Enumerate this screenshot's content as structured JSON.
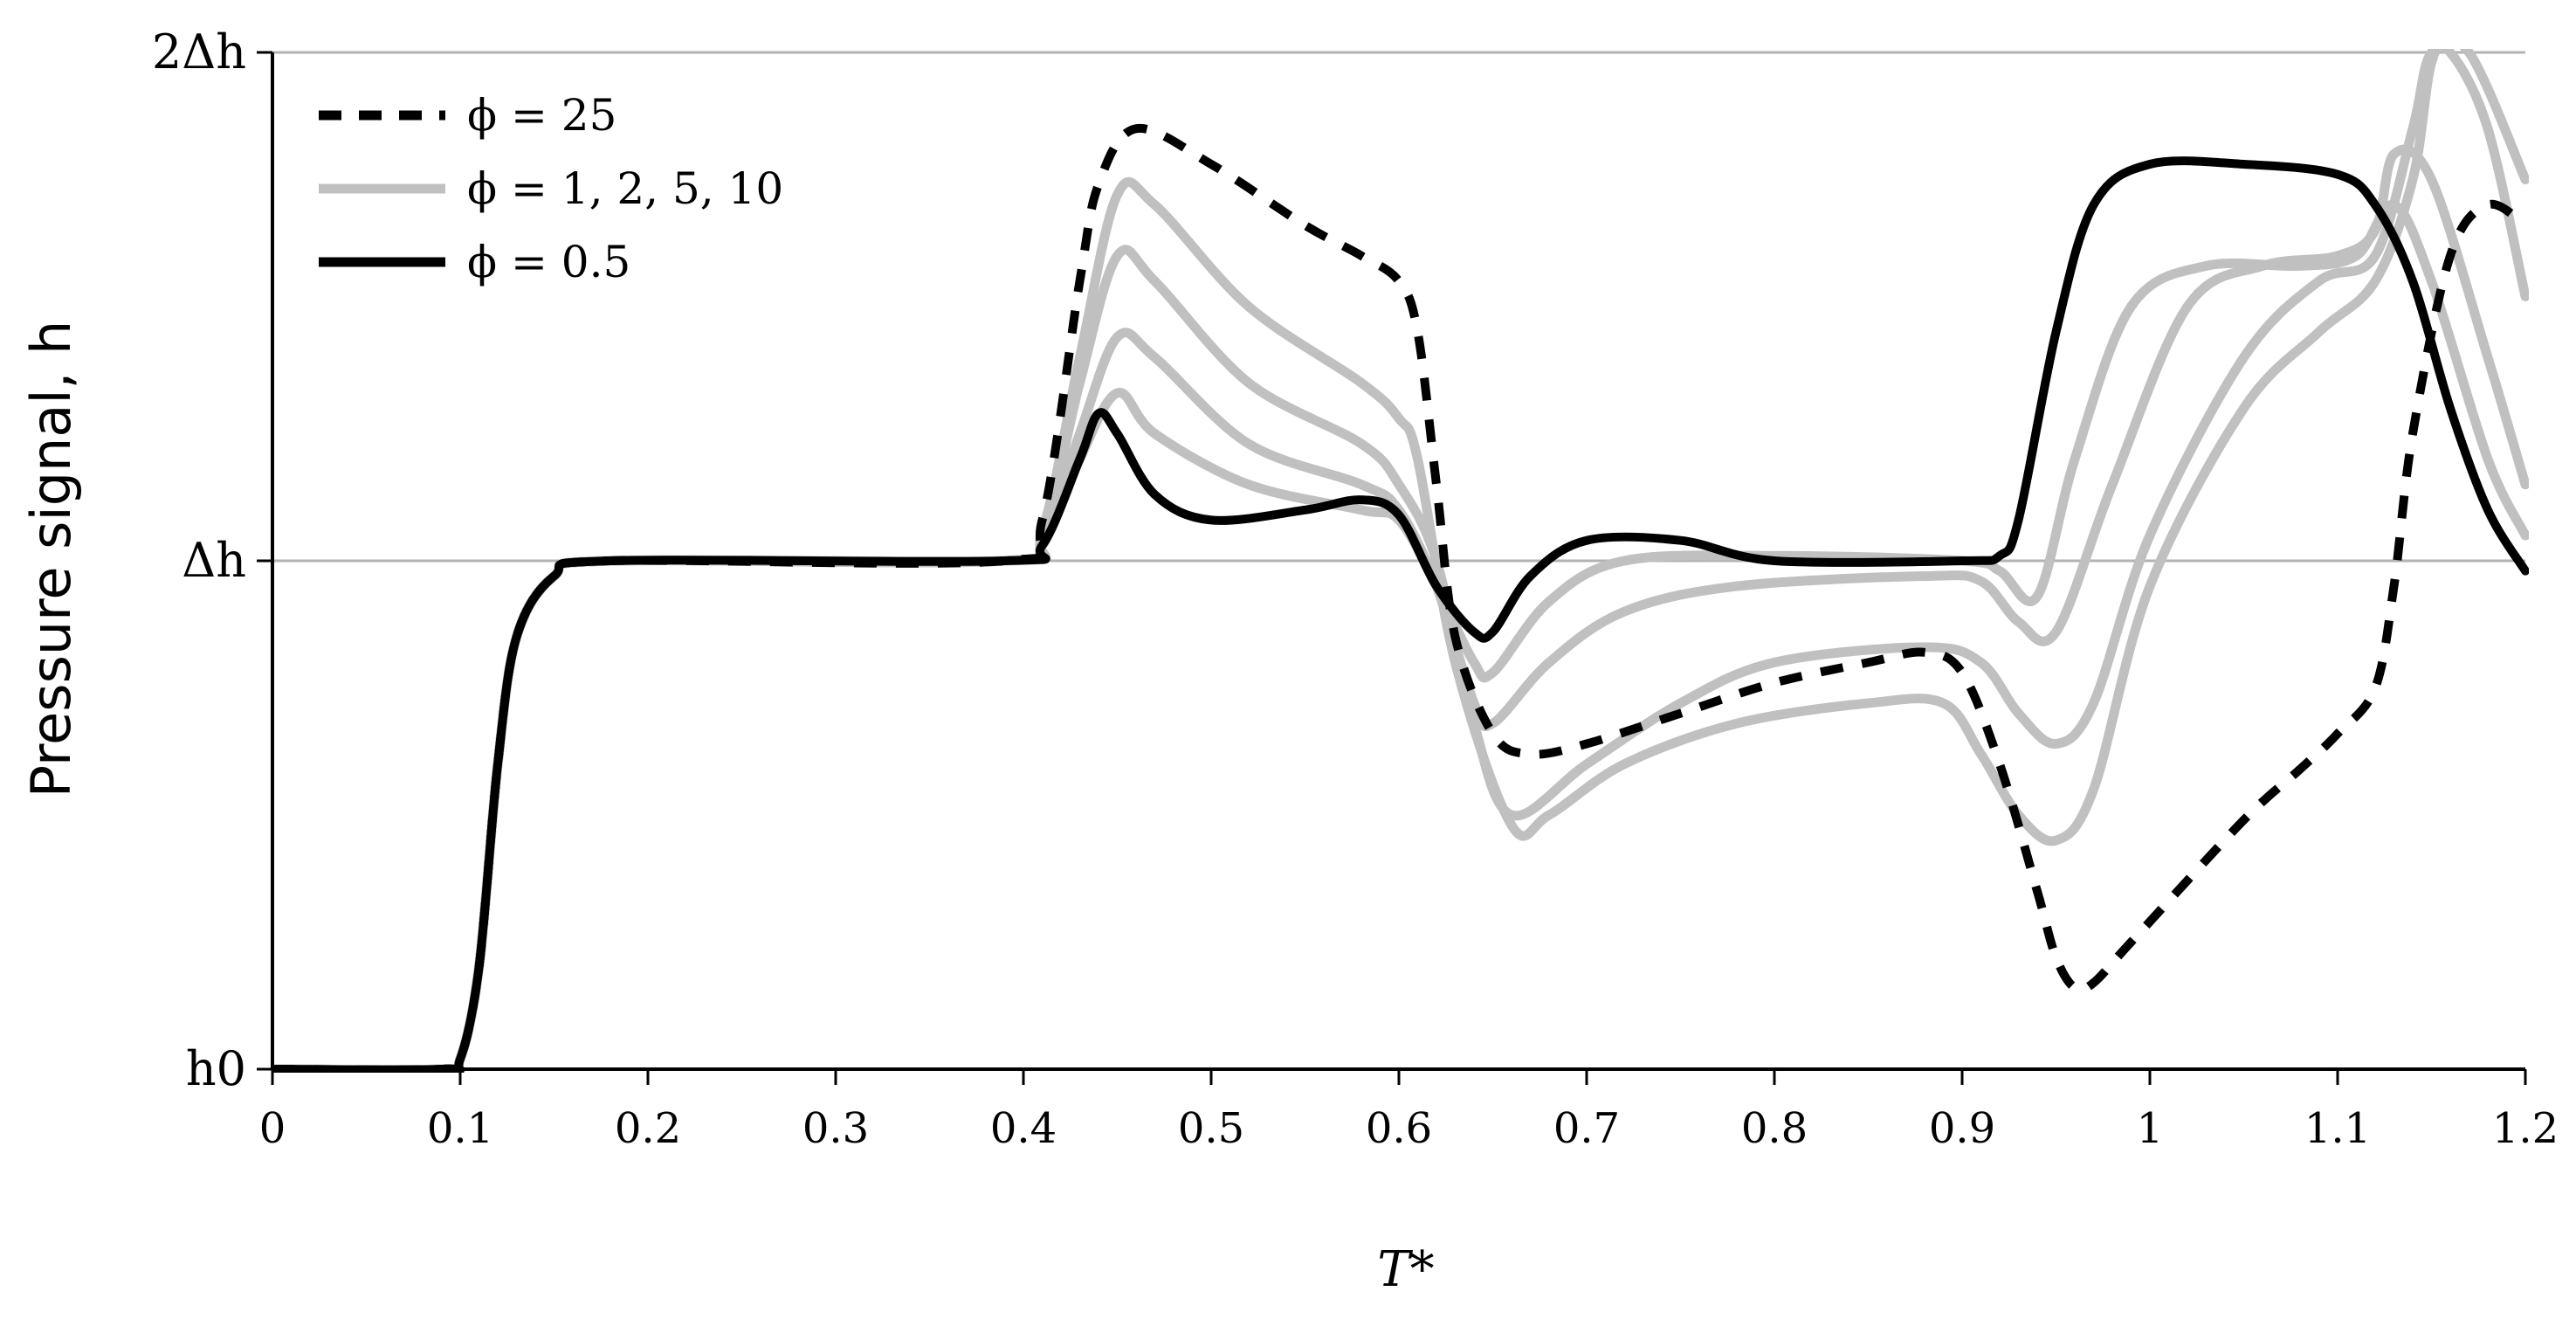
{
  "chart_data": {
    "type": "line",
    "xlabel": "T*",
    "ylabel": "Pressure signal, h",
    "xlim": [
      0,
      1.2
    ],
    "ylim": [
      0,
      2
    ],
    "x_ticks": [
      0,
      0.1,
      0.2,
      0.3,
      0.4,
      0.5,
      0.6,
      0.7,
      0.8,
      0.9,
      1,
      1.1,
      1.2
    ],
    "x_tick_labels": [
      "0",
      "0.1",
      "0.2",
      "0.3",
      "0.4",
      "0.5",
      "0.6",
      "0.7",
      "0.8",
      "0.9",
      "1",
      "1.1",
      "1.2"
    ],
    "y_ticks": [
      0,
      1,
      2
    ],
    "y_tick_labels": [
      "h0",
      "Δh",
      "2Δh"
    ],
    "grid": "horizontal",
    "legend_position": "top-left",
    "legend": [
      {
        "label": "ϕ = 25",
        "style": "dashed",
        "color": "#000000"
      },
      {
        "label": "ϕ = 1, 2, 5, 10",
        "style": "solid",
        "color": "#c0c0c0"
      },
      {
        "label": "ϕ = 0.5",
        "style": "solid",
        "color": "#000000"
      }
    ],
    "series": [
      {
        "name": "ϕ = 25",
        "color": "#000000",
        "style": "dashed",
        "points": [
          [
            0,
            0
          ],
          [
            0.09,
            0
          ],
          [
            0.1,
            0.02
          ],
          [
            0.11,
            0.2
          ],
          [
            0.12,
            0.6
          ],
          [
            0.13,
            0.85
          ],
          [
            0.15,
            0.97
          ],
          [
            0.18,
            1
          ],
          [
            0.39,
            1
          ],
          [
            0.41,
            1.08
          ],
          [
            0.43,
            1.55
          ],
          [
            0.44,
            1.74
          ],
          [
            0.46,
            1.85
          ],
          [
            0.5,
            1.78
          ],
          [
            0.55,
            1.66
          ],
          [
            0.58,
            1.6
          ],
          [
            0.6,
            1.55
          ],
          [
            0.61,
            1.45
          ],
          [
            0.62,
            1.15
          ],
          [
            0.63,
            0.85
          ],
          [
            0.65,
            0.66
          ],
          [
            0.67,
            0.62
          ],
          [
            0.7,
            0.64
          ],
          [
            0.75,
            0.7
          ],
          [
            0.8,
            0.76
          ],
          [
            0.85,
            0.8
          ],
          [
            0.88,
            0.82
          ],
          [
            0.9,
            0.78
          ],
          [
            0.92,
            0.6
          ],
          [
            0.94,
            0.35
          ],
          [
            0.95,
            0.22
          ],
          [
            0.96,
            0.16
          ],
          [
            0.97,
            0.17
          ],
          [
            0.99,
            0.25
          ],
          [
            1.05,
            0.49
          ],
          [
            1.08,
            0.59
          ],
          [
            1.1,
            0.66
          ],
          [
            1.12,
            0.75
          ],
          [
            1.13,
            0.95
          ],
          [
            1.14,
            1.25
          ],
          [
            1.16,
            1.6
          ],
          [
            1.18,
            1.7
          ],
          [
            1.2,
            1.66
          ]
        ]
      },
      {
        "name": "ϕ = 10",
        "color": "#c0c0c0",
        "style": "solid",
        "points": [
          [
            0,
            0
          ],
          [
            0.09,
            0
          ],
          [
            0.1,
            0.02
          ],
          [
            0.11,
            0.2
          ],
          [
            0.12,
            0.6
          ],
          [
            0.13,
            0.85
          ],
          [
            0.15,
            0.97
          ],
          [
            0.18,
            1
          ],
          [
            0.39,
            1
          ],
          [
            0.41,
            1.06
          ],
          [
            0.43,
            1.4
          ],
          [
            0.45,
            1.72
          ],
          [
            0.47,
            1.7
          ],
          [
            0.52,
            1.5
          ],
          [
            0.58,
            1.35
          ],
          [
            0.6,
            1.28
          ],
          [
            0.61,
            1.2
          ],
          [
            0.63,
            0.8
          ],
          [
            0.66,
            0.48
          ],
          [
            0.68,
            0.5
          ],
          [
            0.72,
            0.6
          ],
          [
            0.78,
            0.68
          ],
          [
            0.85,
            0.72
          ],
          [
            0.89,
            0.72
          ],
          [
            0.91,
            0.62
          ],
          [
            0.93,
            0.5
          ],
          [
            0.95,
            0.45
          ],
          [
            0.97,
            0.55
          ],
          [
            1,
            0.95
          ],
          [
            1.05,
            1.3
          ],
          [
            1.09,
            1.45
          ],
          [
            1.12,
            1.55
          ],
          [
            1.14,
            1.75
          ],
          [
            1.15,
            1.98
          ],
          [
            1.16,
            2
          ],
          [
            1.18,
            1.85
          ],
          [
            1.2,
            1.52
          ]
        ]
      },
      {
        "name": "ϕ = 5",
        "color": "#c0c0c0",
        "style": "solid",
        "points": [
          [
            0,
            0
          ],
          [
            0.09,
            0
          ],
          [
            0.1,
            0.02
          ],
          [
            0.11,
            0.2
          ],
          [
            0.12,
            0.6
          ],
          [
            0.13,
            0.85
          ],
          [
            0.15,
            0.97
          ],
          [
            0.18,
            1
          ],
          [
            0.39,
            1
          ],
          [
            0.41,
            1.05
          ],
          [
            0.43,
            1.35
          ],
          [
            0.45,
            1.6
          ],
          [
            0.47,
            1.55
          ],
          [
            0.52,
            1.35
          ],
          [
            0.58,
            1.23
          ],
          [
            0.6,
            1.15
          ],
          [
            0.62,
            1
          ],
          [
            0.64,
            0.68
          ],
          [
            0.66,
            0.5
          ],
          [
            0.7,
            0.6
          ],
          [
            0.75,
            0.72
          ],
          [
            0.8,
            0.8
          ],
          [
            0.88,
            0.83
          ],
          [
            0.91,
            0.8
          ],
          [
            0.93,
            0.7
          ],
          [
            0.95,
            0.64
          ],
          [
            0.97,
            0.72
          ],
          [
            1,
            1.05
          ],
          [
            1.05,
            1.4
          ],
          [
            1.09,
            1.55
          ],
          [
            1.12,
            1.6
          ],
          [
            1.14,
            1.85
          ],
          [
            1.15,
            2
          ],
          [
            1.17,
            2
          ],
          [
            1.2,
            1.75
          ]
        ]
      },
      {
        "name": "ϕ = 2",
        "color": "#c0c0c0",
        "style": "solid",
        "points": [
          [
            0,
            0
          ],
          [
            0.09,
            0
          ],
          [
            0.1,
            0.02
          ],
          [
            0.11,
            0.2
          ],
          [
            0.12,
            0.6
          ],
          [
            0.13,
            0.85
          ],
          [
            0.15,
            0.97
          ],
          [
            0.18,
            1
          ],
          [
            0.39,
            1
          ],
          [
            0.41,
            1.04
          ],
          [
            0.43,
            1.25
          ],
          [
            0.45,
            1.44
          ],
          [
            0.47,
            1.4
          ],
          [
            0.52,
            1.23
          ],
          [
            0.58,
            1.15
          ],
          [
            0.6,
            1.1
          ],
          [
            0.62,
            0.95
          ],
          [
            0.64,
            0.72
          ],
          [
            0.65,
            0.68
          ],
          [
            0.68,
            0.8
          ],
          [
            0.72,
            0.9
          ],
          [
            0.78,
            0.95
          ],
          [
            0.88,
            0.97
          ],
          [
            0.91,
            0.96
          ],
          [
            0.93,
            0.88
          ],
          [
            0.95,
            0.86
          ],
          [
            0.98,
            1.15
          ],
          [
            1.02,
            1.5
          ],
          [
            1.06,
            1.58
          ],
          [
            1.1,
            1.6
          ],
          [
            1.12,
            1.65
          ],
          [
            1.13,
            1.8
          ],
          [
            1.15,
            1.75
          ],
          [
            1.18,
            1.4
          ],
          [
            1.2,
            1.15
          ]
        ]
      },
      {
        "name": "ϕ = 1",
        "color": "#c0c0c0",
        "style": "solid",
        "points": [
          [
            0,
            0
          ],
          [
            0.09,
            0
          ],
          [
            0.1,
            0.02
          ],
          [
            0.11,
            0.2
          ],
          [
            0.12,
            0.6
          ],
          [
            0.13,
            0.85
          ],
          [
            0.15,
            0.97
          ],
          [
            0.18,
            1
          ],
          [
            0.39,
            1
          ],
          [
            0.41,
            1.03
          ],
          [
            0.43,
            1.2
          ],
          [
            0.45,
            1.33
          ],
          [
            0.47,
            1.25
          ],
          [
            0.52,
            1.15
          ],
          [
            0.58,
            1.1
          ],
          [
            0.6,
            1.08
          ],
          [
            0.62,
            0.95
          ],
          [
            0.64,
            0.8
          ],
          [
            0.65,
            0.78
          ],
          [
            0.68,
            0.92
          ],
          [
            0.72,
            1
          ],
          [
            0.8,
            1.01
          ],
          [
            0.9,
            1
          ],
          [
            0.92,
            0.98
          ],
          [
            0.94,
            0.93
          ],
          [
            0.96,
            1.2
          ],
          [
            0.99,
            1.5
          ],
          [
            1.03,
            1.58
          ],
          [
            1.08,
            1.58
          ],
          [
            1.11,
            1.6
          ],
          [
            1.13,
            1.7
          ],
          [
            1.15,
            1.55
          ],
          [
            1.18,
            1.2
          ],
          [
            1.2,
            1.05
          ]
        ]
      },
      {
        "name": "ϕ = 0.5",
        "color": "#000000",
        "style": "solid",
        "points": [
          [
            0,
            0
          ],
          [
            0.09,
            0
          ],
          [
            0.1,
            0.02
          ],
          [
            0.11,
            0.2
          ],
          [
            0.12,
            0.6
          ],
          [
            0.13,
            0.85
          ],
          [
            0.15,
            0.97
          ],
          [
            0.18,
            1
          ],
          [
            0.39,
            1
          ],
          [
            0.41,
            1.03
          ],
          [
            0.43,
            1.2
          ],
          [
            0.44,
            1.29
          ],
          [
            0.45,
            1.25
          ],
          [
            0.47,
            1.13
          ],
          [
            0.5,
            1.08
          ],
          [
            0.55,
            1.1
          ],
          [
            0.58,
            1.12
          ],
          [
            0.6,
            1.09
          ],
          [
            0.62,
            0.95
          ],
          [
            0.64,
            0.86
          ],
          [
            0.65,
            0.86
          ],
          [
            0.67,
            0.97
          ],
          [
            0.7,
            1.04
          ],
          [
            0.75,
            1.04
          ],
          [
            0.8,
            1
          ],
          [
            0.9,
            1
          ],
          [
            0.92,
            1.01
          ],
          [
            0.93,
            1.08
          ],
          [
            0.95,
            1.45
          ],
          [
            0.97,
            1.7
          ],
          [
            1,
            1.78
          ],
          [
            1.05,
            1.78
          ],
          [
            1.1,
            1.76
          ],
          [
            1.12,
            1.7
          ],
          [
            1.14,
            1.55
          ],
          [
            1.16,
            1.3
          ],
          [
            1.18,
            1.1
          ],
          [
            1.2,
            0.98
          ]
        ]
      }
    ]
  }
}
